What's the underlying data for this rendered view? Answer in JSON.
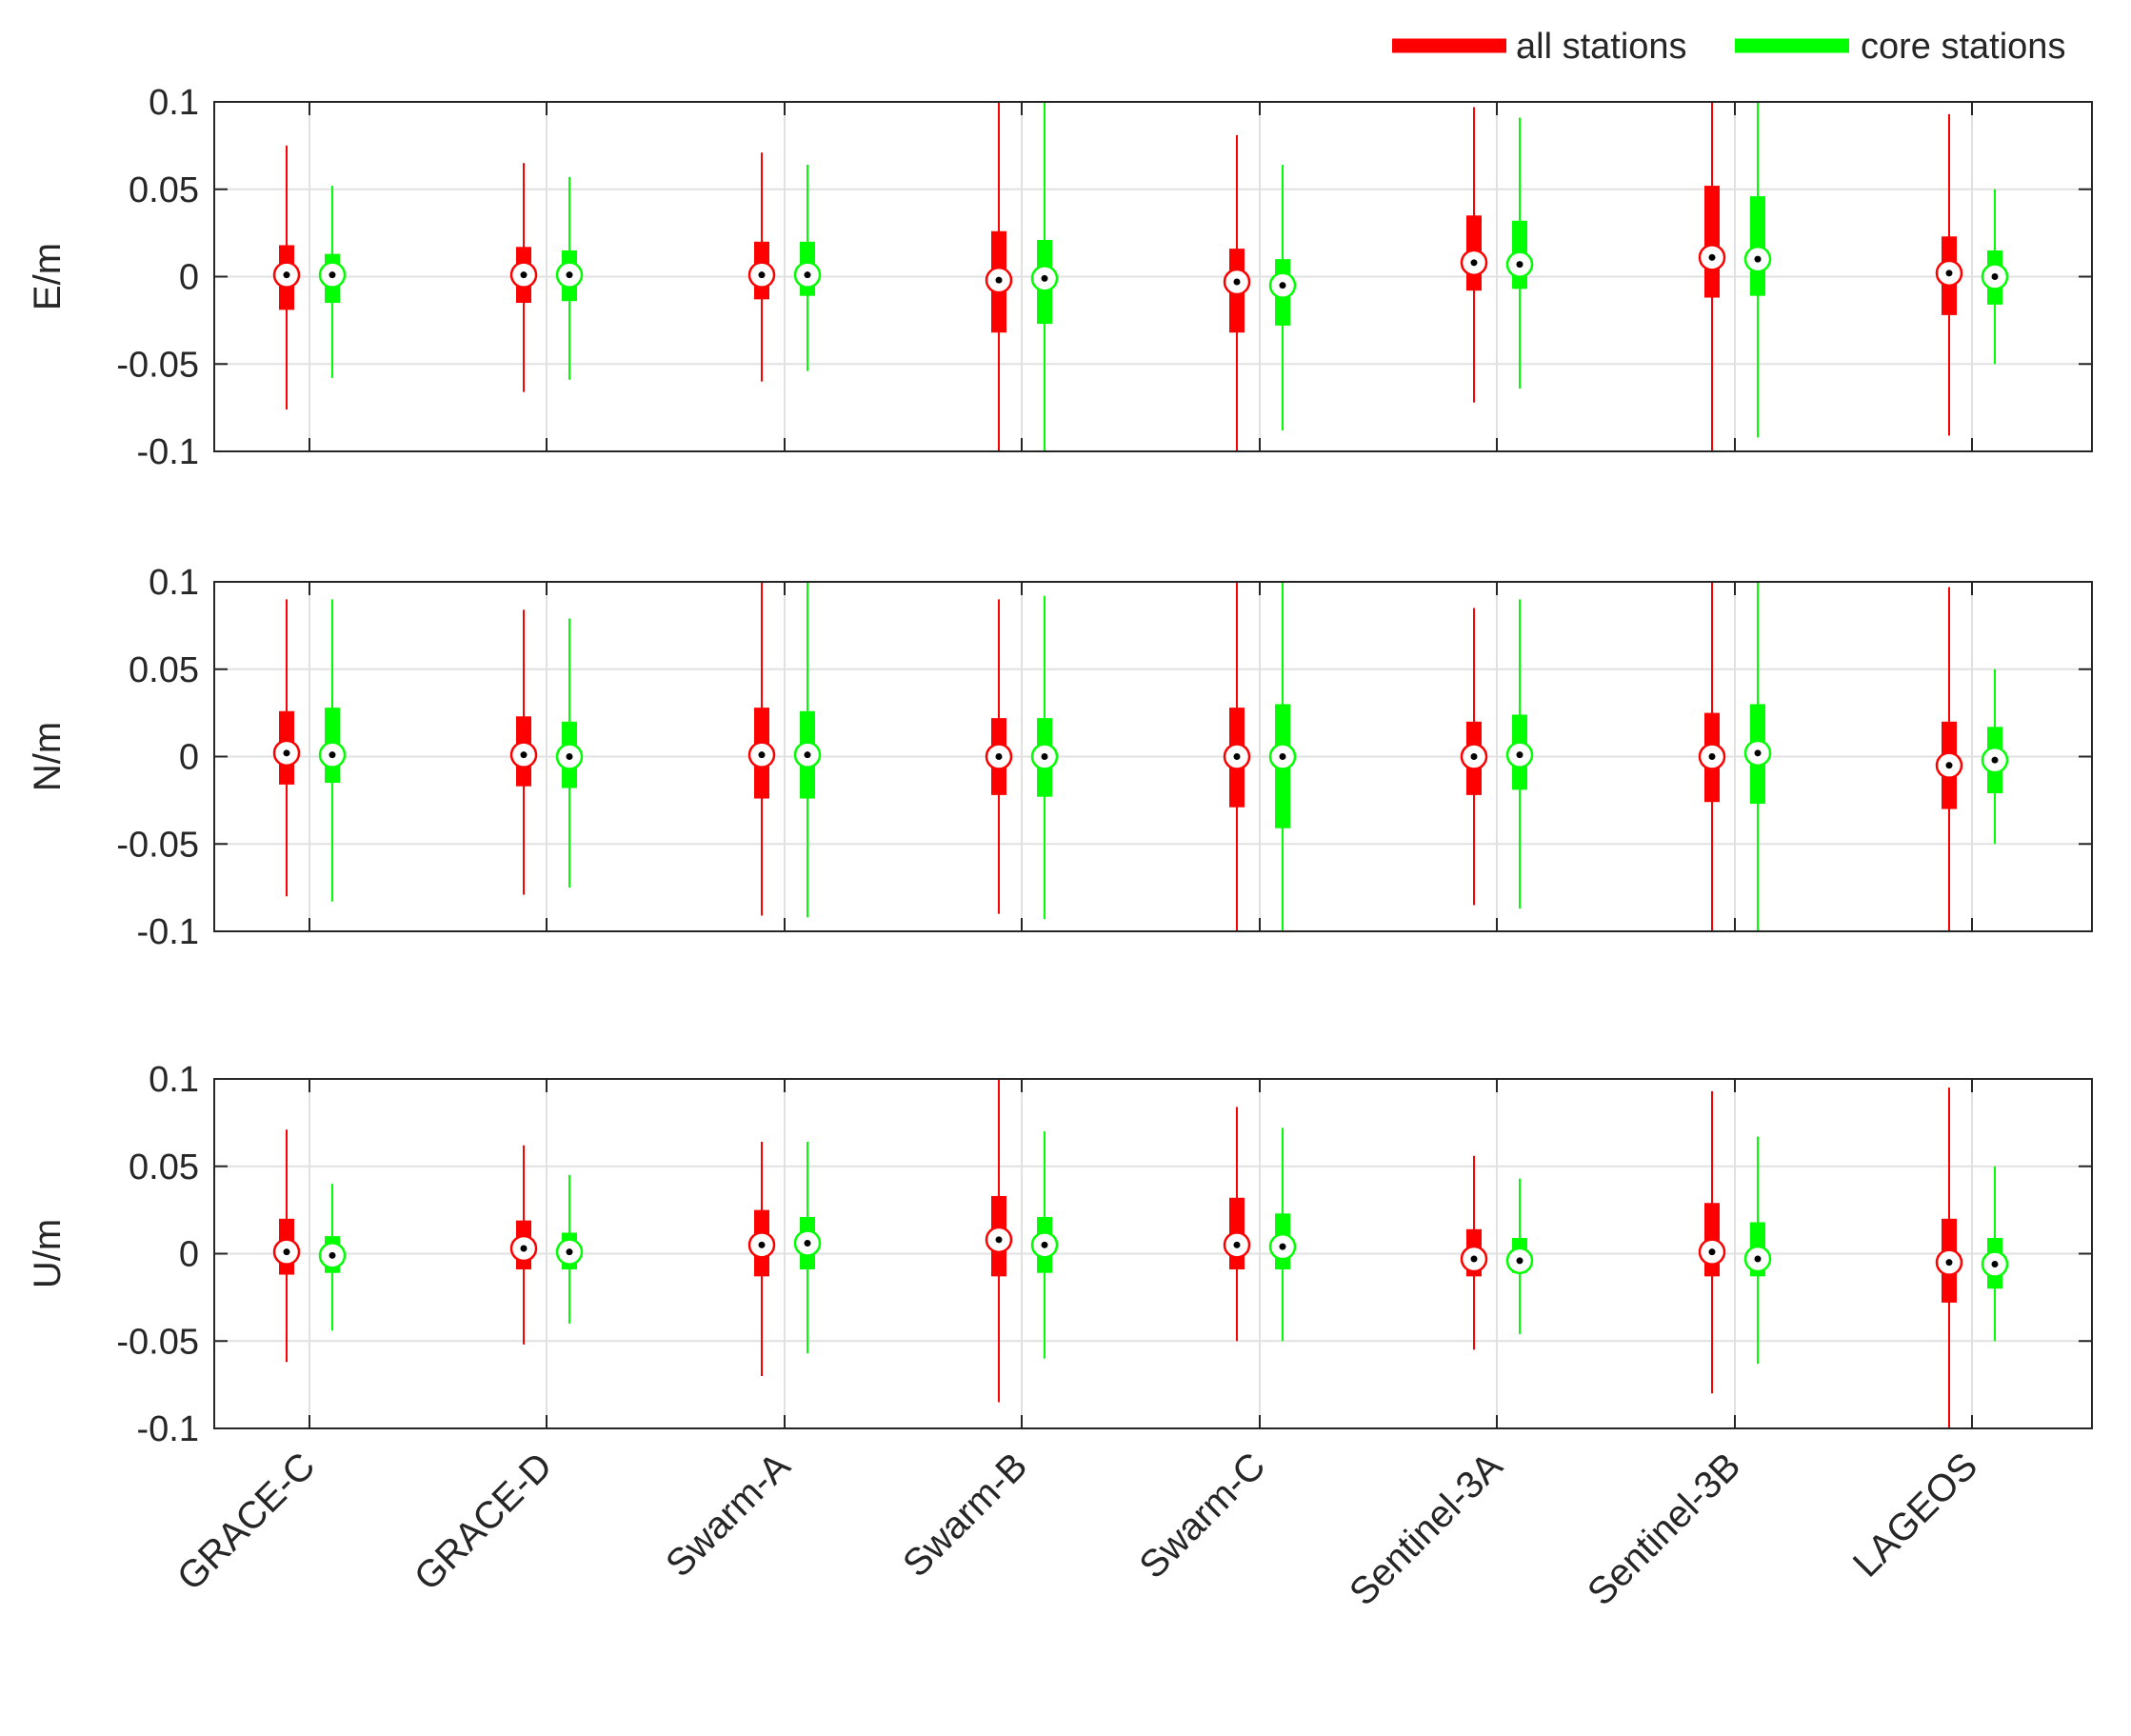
{
  "chart_data": {
    "type": "boxplot",
    "categories": [
      "GRACE-C",
      "GRACE-D",
      "Swarm-A",
      "Swarm-B",
      "Swarm-C",
      "Sentinel-3A",
      "Sentinel-3B",
      "LAGEOS"
    ],
    "legend": [
      {
        "name": "all stations",
        "color": "#ff0000"
      },
      {
        "name": "core stations",
        "color": "#00ff00"
      }
    ],
    "ylim": [
      -0.1,
      0.1
    ],
    "yticks": [
      0.1,
      0.05,
      0,
      -0.05,
      -0.1
    ],
    "ytick_labels": [
      "0.1",
      "0.05",
      "0",
      "-0.05",
      "-0.1"
    ],
    "panels": [
      {
        "ylabel": "E/m",
        "series": [
          {
            "name": "all stations",
            "median": [
              0.001,
              0.001,
              0.001,
              -0.002,
              -0.003,
              0.008,
              0.011,
              0.002
            ],
            "q1": [
              -0.019,
              -0.015,
              -0.013,
              -0.032,
              -0.032,
              -0.008,
              -0.012,
              -0.022
            ],
            "q3": [
              0.018,
              0.017,
              0.02,
              0.026,
              0.016,
              0.035,
              0.052,
              0.023
            ],
            "whisker_low": [
              -0.076,
              -0.066,
              -0.06,
              -0.1,
              -0.1,
              -0.072,
              -0.1,
              -0.091
            ],
            "whisker_high": [
              0.075,
              0.065,
              0.071,
              0.1,
              0.081,
              0.097,
              0.1,
              0.093
            ]
          },
          {
            "name": "core stations",
            "median": [
              0.001,
              0.001,
              0.001,
              -0.001,
              -0.005,
              0.007,
              0.01,
              0.0
            ],
            "q1": [
              -0.015,
              -0.014,
              -0.011,
              -0.027,
              -0.028,
              -0.007,
              -0.011,
              -0.016
            ],
            "q3": [
              0.013,
              0.015,
              0.02,
              0.021,
              0.01,
              0.032,
              0.046,
              0.015
            ],
            "whisker_low": [
              -0.058,
              -0.059,
              -0.054,
              -0.1,
              -0.088,
              -0.064,
              -0.092,
              -0.05
            ],
            "whisker_high": [
              0.052,
              0.057,
              0.064,
              0.1,
              0.064,
              0.091,
              0.1,
              0.05
            ]
          }
        ]
      },
      {
        "ylabel": "N/m",
        "series": [
          {
            "name": "all stations",
            "median": [
              0.002,
              0.001,
              0.001,
              0.0,
              0.0,
              0.0,
              0.0,
              -0.005
            ],
            "q1": [
              -0.016,
              -0.017,
              -0.024,
              -0.022,
              -0.029,
              -0.022,
              -0.026,
              -0.03
            ],
            "q3": [
              0.026,
              0.023,
              0.028,
              0.022,
              0.028,
              0.02,
              0.025,
              0.02
            ],
            "whisker_low": [
              -0.08,
              -0.079,
              -0.091,
              -0.09,
              -0.1,
              -0.085,
              -0.1,
              -0.1
            ],
            "whisker_high": [
              0.09,
              0.084,
              0.1,
              0.09,
              0.1,
              0.085,
              0.1,
              0.097
            ]
          },
          {
            "name": "core stations",
            "median": [
              0.001,
              0.0,
              0.001,
              0.0,
              0.0,
              0.001,
              0.002,
              -0.002
            ],
            "q1": [
              -0.015,
              -0.018,
              -0.024,
              -0.023,
              -0.041,
              -0.019,
              -0.027,
              -0.021
            ],
            "q3": [
              0.028,
              0.02,
              0.026,
              0.022,
              0.03,
              0.024,
              0.03,
              0.017
            ],
            "whisker_low": [
              -0.083,
              -0.075,
              -0.092,
              -0.093,
              -0.1,
              -0.087,
              -0.1,
              -0.05
            ],
            "whisker_high": [
              0.09,
              0.079,
              0.1,
              0.092,
              0.1,
              0.09,
              0.1,
              0.05
            ]
          }
        ]
      },
      {
        "ylabel": "U/m",
        "series": [
          {
            "name": "all stations",
            "median": [
              0.001,
              0.003,
              0.005,
              0.008,
              0.005,
              -0.003,
              0.001,
              -0.005
            ],
            "q1": [
              -0.012,
              -0.009,
              -0.013,
              -0.013,
              -0.009,
              -0.013,
              -0.013,
              -0.028
            ],
            "q3": [
              0.02,
              0.019,
              0.025,
              0.033,
              0.032,
              0.014,
              0.029,
              0.02
            ],
            "whisker_low": [
              -0.062,
              -0.052,
              -0.07,
              -0.085,
              -0.05,
              -0.055,
              -0.08,
              -0.1
            ],
            "whisker_high": [
              0.071,
              0.062,
              0.064,
              0.1,
              0.084,
              0.056,
              0.093,
              0.095
            ]
          },
          {
            "name": "core stations",
            "median": [
              -0.001,
              0.001,
              0.006,
              0.005,
              0.004,
              -0.004,
              -0.003,
              -0.006
            ],
            "q1": [
              -0.011,
              -0.009,
              -0.009,
              -0.011,
              -0.009,
              -0.011,
              -0.013,
              -0.02
            ],
            "q3": [
              0.01,
              0.012,
              0.021,
              0.021,
              0.023,
              0.009,
              0.018,
              0.009
            ],
            "whisker_low": [
              -0.044,
              -0.04,
              -0.057,
              -0.06,
              -0.05,
              -0.046,
              -0.063,
              -0.05
            ],
            "whisker_high": [
              0.04,
              0.045,
              0.064,
              0.07,
              0.072,
              0.043,
              0.067,
              0.05
            ]
          }
        ]
      }
    ]
  }
}
